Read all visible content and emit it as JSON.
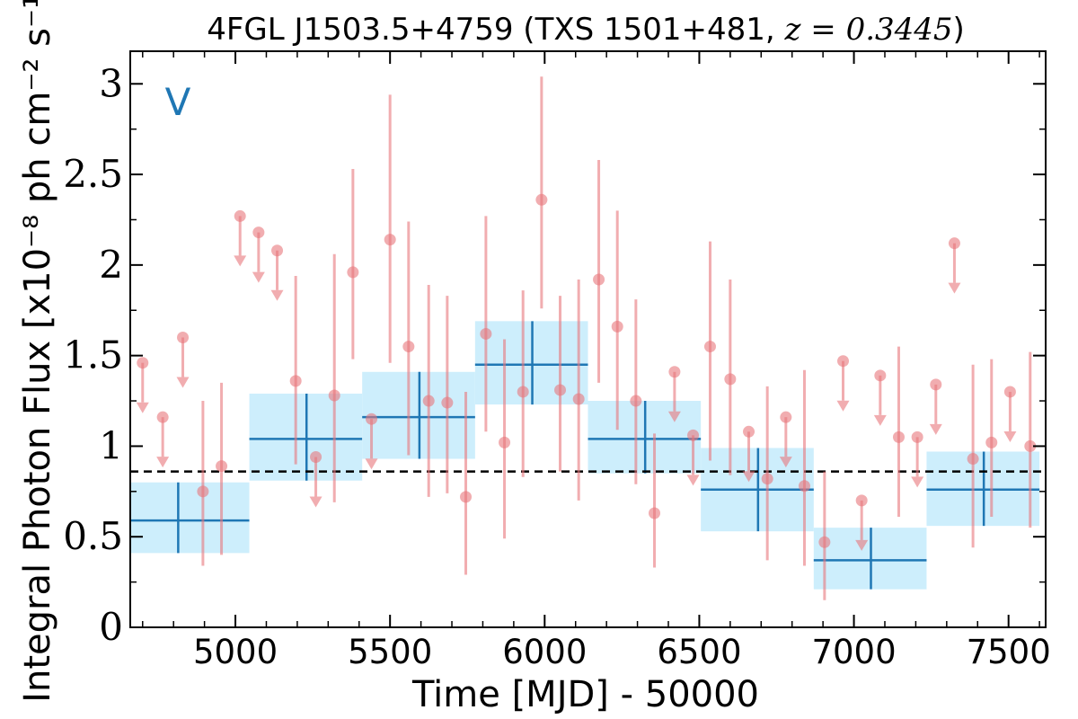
{
  "chart_data": {
    "type": "scatter",
    "title": {
      "prefix": "4FGL J1503.5+4759 (TXS 1501+481, ",
      "math": "z = 0.3445",
      "suffix": ")"
    },
    "xlabel": "Time [MJD] - 50000",
    "ylabel": "Integral Photon Flux [x10⁻⁸ ph cm⁻² s⁻¹]",
    "annotation": "V",
    "xlim": [
      4660,
      7620
    ],
    "ylim": [
      0,
      3.18
    ],
    "xticks": [
      5000,
      5500,
      6000,
      6500,
      7000,
      7500
    ],
    "yticks": [
      0,
      0.5,
      1,
      1.5,
      2,
      2.5,
      3
    ],
    "ytick_labels": [
      "0",
      "0.5",
      "1",
      "1.5",
      "2",
      "2.5",
      "3"
    ],
    "grid": false,
    "mean_flux": 0.86,
    "colors": {
      "detections": "#e8777b",
      "upper_limits": "#e8777b",
      "bins_fill": "#cdeefc",
      "bins_line": "#1f77b4",
      "mean_line": "#000000"
    },
    "detections": [
      {
        "x": 4895,
        "y": 0.75,
        "lo": 0.34,
        "hi": 1.25
      },
      {
        "x": 4955,
        "y": 0.89,
        "lo": 0.4,
        "hi": 1.35
      },
      {
        "x": 5195,
        "y": 1.36,
        "lo": 0.9,
        "hi": 1.94
      },
      {
        "x": 5320,
        "y": 1.28,
        "lo": 0.69,
        "hi": 2.06
      },
      {
        "x": 5380,
        "y": 1.96,
        "lo": 1.48,
        "hi": 2.53
      },
      {
        "x": 5500,
        "y": 2.14,
        "lo": 1.46,
        "hi": 2.94
      },
      {
        "x": 5560,
        "y": 1.55,
        "lo": 0.95,
        "hi": 2.24
      },
      {
        "x": 5625,
        "y": 1.25,
        "lo": 0.72,
        "hi": 1.89
      },
      {
        "x": 5685,
        "y": 1.24,
        "lo": 0.74,
        "hi": 1.83
      },
      {
        "x": 5745,
        "y": 0.72,
        "lo": 0.29,
        "hi": 1.3
      },
      {
        "x": 5810,
        "y": 1.62,
        "lo": 1.08,
        "hi": 2.27
      },
      {
        "x": 5870,
        "y": 1.02,
        "lo": 0.49,
        "hi": 1.59
      },
      {
        "x": 5930,
        "y": 1.3,
        "lo": 0.83,
        "hi": 1.86
      },
      {
        "x": 5990,
        "y": 2.36,
        "lo": 1.76,
        "hi": 3.04
      },
      {
        "x": 6050,
        "y": 1.31,
        "lo": 0.86,
        "hi": 1.83
      },
      {
        "x": 6110,
        "y": 1.26,
        "lo": 0.7,
        "hi": 1.92
      },
      {
        "x": 6175,
        "y": 1.92,
        "lo": 1.35,
        "hi": 2.58
      },
      {
        "x": 6235,
        "y": 1.66,
        "lo": 1.09,
        "hi": 2.3
      },
      {
        "x": 6295,
        "y": 1.25,
        "lo": 0.79,
        "hi": 1.81
      },
      {
        "x": 6355,
        "y": 0.63,
        "lo": 0.33,
        "hi": 1.07
      },
      {
        "x": 6535,
        "y": 1.55,
        "lo": 0.92,
        "hi": 2.13
      },
      {
        "x": 6600,
        "y": 1.37,
        "lo": 0.84,
        "hi": 1.92
      },
      {
        "x": 6720,
        "y": 0.82,
        "lo": 0.37,
        "hi": 1.33
      },
      {
        "x": 6840,
        "y": 0.78,
        "lo": 0.34,
        "hi": 1.42
      },
      {
        "x": 6905,
        "y": 0.47,
        "lo": 0.15,
        "hi": 0.86
      },
      {
        "x": 7145,
        "y": 1.05,
        "lo": 0.61,
        "hi": 1.55
      },
      {
        "x": 7385,
        "y": 0.93,
        "lo": 0.44,
        "hi": 1.45
      },
      {
        "x": 7445,
        "y": 1.02,
        "lo": 0.61,
        "hi": 1.48
      },
      {
        "x": 7570,
        "y": 1.0,
        "lo": 0.55,
        "hi": 1.52
      }
    ],
    "upper_limits": [
      {
        "x": 4700,
        "y": 1.46
      },
      {
        "x": 4765,
        "y": 1.16
      },
      {
        "x": 4830,
        "y": 1.6
      },
      {
        "x": 5015,
        "y": 2.27
      },
      {
        "x": 5075,
        "y": 2.18
      },
      {
        "x": 5135,
        "y": 2.08
      },
      {
        "x": 5260,
        "y": 0.94
      },
      {
        "x": 5440,
        "y": 1.15
      },
      {
        "x": 6420,
        "y": 1.41
      },
      {
        "x": 6480,
        "y": 1.06
      },
      {
        "x": 6660,
        "y": 1.08
      },
      {
        "x": 6780,
        "y": 1.16
      },
      {
        "x": 6965,
        "y": 1.47
      },
      {
        "x": 7025,
        "y": 0.7
      },
      {
        "x": 7085,
        "y": 1.39
      },
      {
        "x": 7205,
        "y": 1.05
      },
      {
        "x": 7265,
        "y": 1.34
      },
      {
        "x": 7325,
        "y": 2.12
      },
      {
        "x": 7505,
        "y": 1.3
      }
    ],
    "bins": [
      {
        "x0": 4660,
        "x1": 5045,
        "xc": 4815,
        "y": 0.59,
        "lo": 0.41,
        "hi": 0.8
      },
      {
        "x0": 5045,
        "x1": 5410,
        "xc": 5230,
        "y": 1.04,
        "lo": 0.81,
        "hi": 1.29
      },
      {
        "x0": 5410,
        "x1": 5775,
        "xc": 5595,
        "y": 1.16,
        "lo": 0.93,
        "hi": 1.41
      },
      {
        "x0": 5775,
        "x1": 6140,
        "xc": 5960,
        "y": 1.45,
        "lo": 1.23,
        "hi": 1.69
      },
      {
        "x0": 6140,
        "x1": 6505,
        "xc": 6325,
        "y": 1.04,
        "lo": 0.85,
        "hi": 1.25
      },
      {
        "x0": 6505,
        "x1": 6870,
        "xc": 6690,
        "y": 0.76,
        "lo": 0.53,
        "hi": 0.99
      },
      {
        "x0": 6870,
        "x1": 7235,
        "xc": 7055,
        "y": 0.37,
        "lo": 0.21,
        "hi": 0.55
      },
      {
        "x0": 7235,
        "x1": 7600,
        "xc": 7420,
        "y": 0.76,
        "lo": 0.56,
        "hi": 0.97
      }
    ]
  }
}
